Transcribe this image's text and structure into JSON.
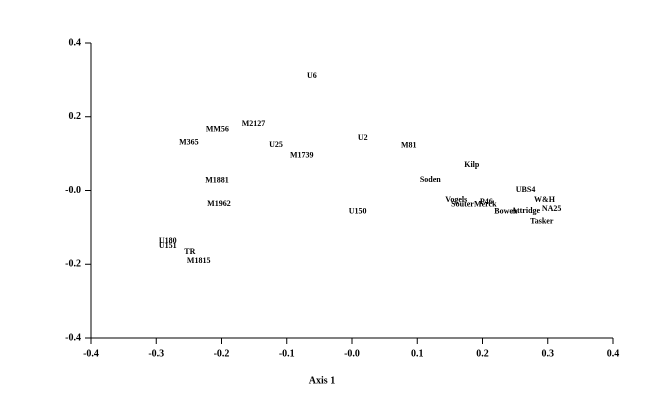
{
  "chart_data": {
    "type": "scatter",
    "xlabel": "Axis 1",
    "xlim": [
      -0.4,
      0.4
    ],
    "ylim": [
      -0.4,
      0.4
    ],
    "xticks": [
      -0.4,
      -0.3,
      -0.2,
      -0.1,
      {
        "value": 0,
        "label": "-0.0"
      },
      0.1,
      0.2,
      0.3,
      0.4
    ],
    "yticks": [
      0.4,
      0.2,
      {
        "value": 0,
        "label": "-0.0"
      },
      -0.2,
      -0.4
    ],
    "color": "#000000",
    "points": [
      {
        "label": "U6",
        "x": -0.069,
        "y": 0.31
      },
      {
        "label": "M365",
        "x": -0.265,
        "y": 0.13
      },
      {
        "label": "MM56",
        "x": -0.224,
        "y": 0.165
      },
      {
        "label": "M2127",
        "x": -0.169,
        "y": 0.18
      },
      {
        "label": "U25",
        "x": -0.127,
        "y": 0.123
      },
      {
        "label": "M1739",
        "x": -0.095,
        "y": 0.094
      },
      {
        "label": "U2",
        "x": 0.009,
        "y": 0.142
      },
      {
        "label": "M81",
        "x": 0.075,
        "y": 0.121
      },
      {
        "label": "Kilp",
        "x": 0.172,
        "y": 0.069
      },
      {
        "label": "Soden",
        "x": 0.104,
        "y": 0.028
      },
      {
        "label": "M1881",
        "x": -0.225,
        "y": 0.026
      },
      {
        "label": "M1962",
        "x": -0.222,
        "y": -0.037
      },
      {
        "label": "U150",
        "x": -0.005,
        "y": -0.058
      },
      {
        "label": "Vogels",
        "x": 0.143,
        "y": -0.026
      },
      {
        "label": "Souter",
        "x": 0.152,
        "y": -0.039
      },
      {
        "label": "Merck",
        "x": 0.187,
        "y": -0.039
      },
      {
        "label": "P46",
        "x": 0.196,
        "y": -0.031
      },
      {
        "label": "UBS4",
        "x": 0.251,
        "y": 0.001
      },
      {
        "label": "W&H",
        "x": 0.279,
        "y": -0.026
      },
      {
        "label": "NA25",
        "x": 0.291,
        "y": -0.05
      },
      {
        "label": "Attridge",
        "x": 0.244,
        "y": -0.056
      },
      {
        "label": "Bowen",
        "x": 0.218,
        "y": -0.058
      },
      {
        "label": "Tasker",
        "x": 0.273,
        "y": -0.085
      },
      {
        "label": "U180",
        "x": -0.296,
        "y": -0.137
      },
      {
        "label": "U151",
        "x": -0.296,
        "y": -0.151
      },
      {
        "label": "TR",
        "x": -0.257,
        "y": -0.167
      },
      {
        "label": "M1815",
        "x": -0.253,
        "y": -0.191
      }
    ]
  }
}
